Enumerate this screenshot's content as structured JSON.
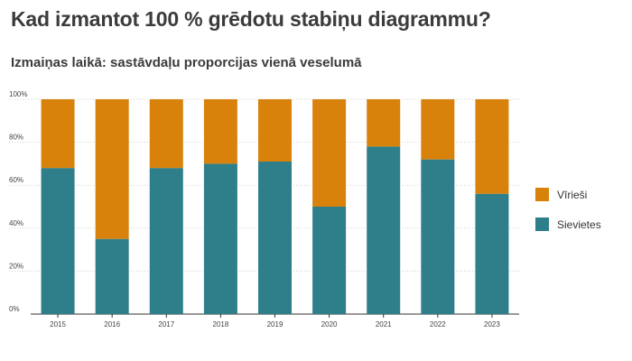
{
  "title": "Kad izmantot 100 % grēdotu stabiņu diagrammu?",
  "subtitle": "Izmaiņas laikā: sastāvdaļu proporcijas vienā veselumā",
  "chart_data": {
    "type": "bar",
    "stacked": "percent",
    "categories": [
      "2015",
      "2016",
      "2017",
      "2018",
      "2019",
      "2020",
      "2021",
      "2022",
      "2023"
    ],
    "series": [
      {
        "name": "Sievietes",
        "color": "#2e7f8a",
        "values": [
          68,
          35,
          68,
          70,
          71,
          50,
          78,
          72,
          56
        ]
      },
      {
        "name": "Vīrieši",
        "color": "#d8820c",
        "values": [
          32,
          65,
          32,
          30,
          29,
          50,
          22,
          28,
          44
        ]
      }
    ],
    "yticks": [
      "0%",
      "20%",
      "40%",
      "60%",
      "80%",
      "100%"
    ],
    "ylim": [
      0,
      100
    ],
    "grid": true,
    "legend_position": "right"
  }
}
